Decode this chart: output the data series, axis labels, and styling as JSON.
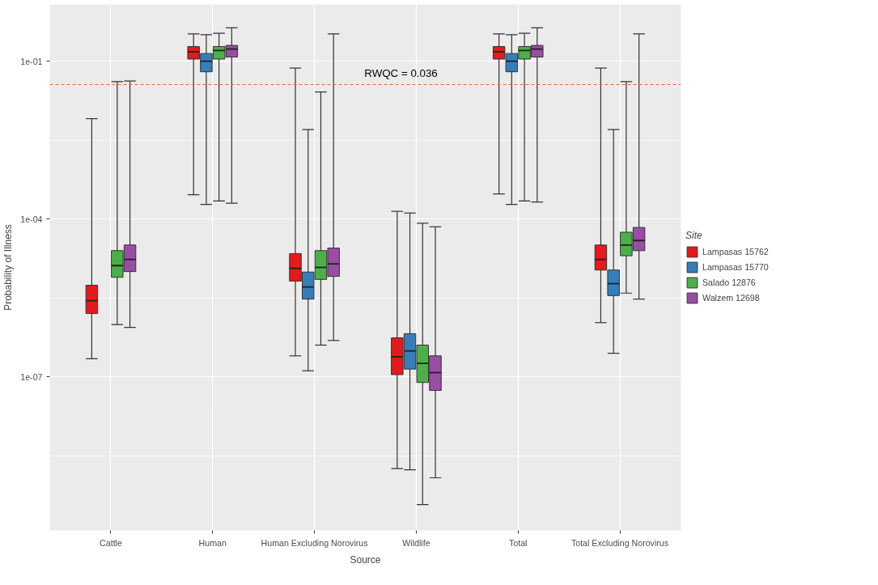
{
  "chart_data": {
    "type": "box",
    "xlabel": "Source",
    "ylabel": "Probability of Illness",
    "legend_title": "Site",
    "legend": "right",
    "log": "y",
    "grid": true,
    "categories": [
      "Cattle",
      "Human",
      "Human Excluding Norovirus",
      "Wildlife",
      "Total",
      "Total Excluding Norovirus"
    ],
    "ylim": [
      1.2e-10,
      1.2
    ],
    "yticks": [
      {
        "value": 0.1,
        "label": "1e-01"
      },
      {
        "value": 0.0001,
        "label": "1e-04"
      },
      {
        "value": 1e-07,
        "label": "1e-07"
      }
    ],
    "ref_lines": [
      {
        "axis": "y",
        "value": 0.036,
        "label": "RWQC = 0.036",
        "color": "#e8605a",
        "line_style": "dashed"
      }
    ],
    "series": [
      {
        "name": "Lampasas 15762",
        "color": "#e41a1c",
        "boxes": [
          {
            "low": 2.2e-07,
            "q1": 1.6e-06,
            "median": 2.8e-06,
            "q3": 5.5e-06,
            "high": 0.0081
          },
          {
            "low": 0.00029,
            "q1": 0.11,
            "median": 0.15,
            "q3": 0.19,
            "high": 0.33
          },
          {
            "low": 2.5e-07,
            "q1": 6.6e-06,
            "median": 1.15e-05,
            "q3": 2.2e-05,
            "high": 0.074
          },
          {
            "low": 1.8e-09,
            "q1": 1.1e-07,
            "median": 2.4e-07,
            "q3": 5.5e-07,
            "high": 0.00014
          },
          {
            "low": 0.0003,
            "q1": 0.11,
            "median": 0.15,
            "q3": 0.19,
            "high": 0.33
          },
          {
            "low": 1.07e-06,
            "q1": 1.07e-05,
            "median": 1.7e-05,
            "q3": 3.2e-05,
            "high": 0.074
          }
        ]
      },
      {
        "name": "Lampasas 15770",
        "color": "#377eb8",
        "boxes": [
          null,
          {
            "low": 0.00019,
            "q1": 0.063,
            "median": 0.1,
            "q3": 0.14,
            "high": 0.32
          },
          {
            "low": 1.3e-07,
            "q1": 3e-06,
            "median": 5.1e-06,
            "q3": 9.8e-06,
            "high": 0.005
          },
          {
            "low": 1.7e-09,
            "q1": 1.4e-07,
            "median": 3.1e-07,
            "q3": 6.6e-07,
            "high": 0.00013
          },
          {
            "low": 0.00019,
            "q1": 0.063,
            "median": 0.1,
            "q3": 0.14,
            "high": 0.32
          },
          {
            "low": 2.8e-07,
            "q1": 3.5e-06,
            "median": 5.9e-06,
            "q3": 1.07e-05,
            "high": 0.005
          }
        ]
      },
      {
        "name": "Salado 12876",
        "color": "#4daf4a",
        "boxes": [
          {
            "low": 9.8e-07,
            "q1": 7.8e-06,
            "median": 1.3e-05,
            "q3": 2.5e-05,
            "high": 0.041
          },
          {
            "low": 0.00022,
            "q1": 0.11,
            "median": 0.16,
            "q3": 0.19,
            "high": 0.34
          },
          {
            "low": 4e-07,
            "q1": 7.1e-06,
            "median": 1.2e-05,
            "q3": 2.5e-05,
            "high": 0.026
          },
          {
            "low": 3.7e-10,
            "q1": 7.8e-08,
            "median": 1.8e-07,
            "q3": 4e-07,
            "high": 8.3e-05
          },
          {
            "low": 0.00022,
            "q1": 0.11,
            "median": 0.16,
            "q3": 0.19,
            "high": 0.34
          },
          {
            "low": 3.9e-06,
            "q1": 2e-05,
            "median": 3.2e-05,
            "q3": 5.6e-05,
            "high": 0.041
          }
        ]
      },
      {
        "name": "Walzem 12698",
        "color": "#984ea3",
        "boxes": [
          {
            "low": 8.7e-07,
            "q1": 1e-05,
            "median": 1.7e-05,
            "q3": 3.2e-05,
            "high": 0.042
          },
          {
            "low": 0.0002,
            "q1": 0.12,
            "median": 0.17,
            "q3": 0.2,
            "high": 0.43
          },
          {
            "low": 4.9e-07,
            "q1": 8.1e-06,
            "median": 1.4e-05,
            "q3": 2.8e-05,
            "high": 0.33
          },
          {
            "low": 1.2e-09,
            "q1": 5.5e-08,
            "median": 1.2e-07,
            "q3": 2.5e-07,
            "high": 7.1e-05
          },
          {
            "low": 0.00021,
            "q1": 0.12,
            "median": 0.17,
            "q3": 0.2,
            "high": 0.43
          },
          {
            "low": 3e-06,
            "q1": 2.5e-05,
            "median": 3.9e-05,
            "q3": 6.9e-05,
            "high": 0.33
          }
        ]
      }
    ]
  }
}
